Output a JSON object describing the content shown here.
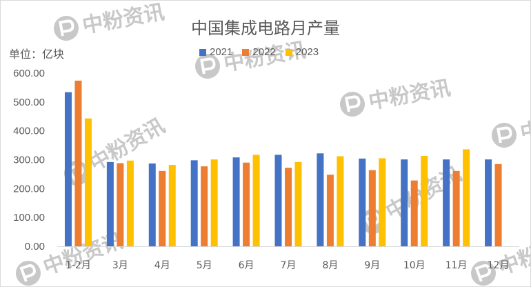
{
  "chart_data": {
    "type": "bar",
    "title": "中国集成电路月产量",
    "ylabel": "单位：亿块",
    "xlabel": "",
    "ylim": [
      0,
      600
    ],
    "yticks": [
      "0.00",
      "100.00",
      "200.00",
      "300.00",
      "400.00",
      "500.00",
      "600.00"
    ],
    "categories": [
      "1-2月",
      "3月",
      "4月",
      "5月",
      "6月",
      "7月",
      "8月",
      "9月",
      "10月",
      "11月",
      "12月"
    ],
    "series": [
      {
        "name": "2021",
        "color": "#4472c4",
        "values": [
          534,
          292,
          287,
          298,
          308,
          317,
          322,
          304,
          301,
          301,
          301
        ]
      },
      {
        "name": "2022",
        "color": "#ed7d31",
        "values": [
          574,
          288,
          261,
          277,
          290,
          272,
          248,
          264,
          228,
          261,
          285
        ]
      },
      {
        "name": "2023",
        "color": "#ffc000",
        "values": [
          443,
          297,
          282,
          301,
          317,
          292,
          312,
          305,
          313,
          336,
          null
        ]
      }
    ],
    "legend_position": "top-center",
    "grid": false
  },
  "watermark": {
    "text": "中粉资讯",
    "icon": "p-logo-icon",
    "color": "#c8c8c8"
  }
}
